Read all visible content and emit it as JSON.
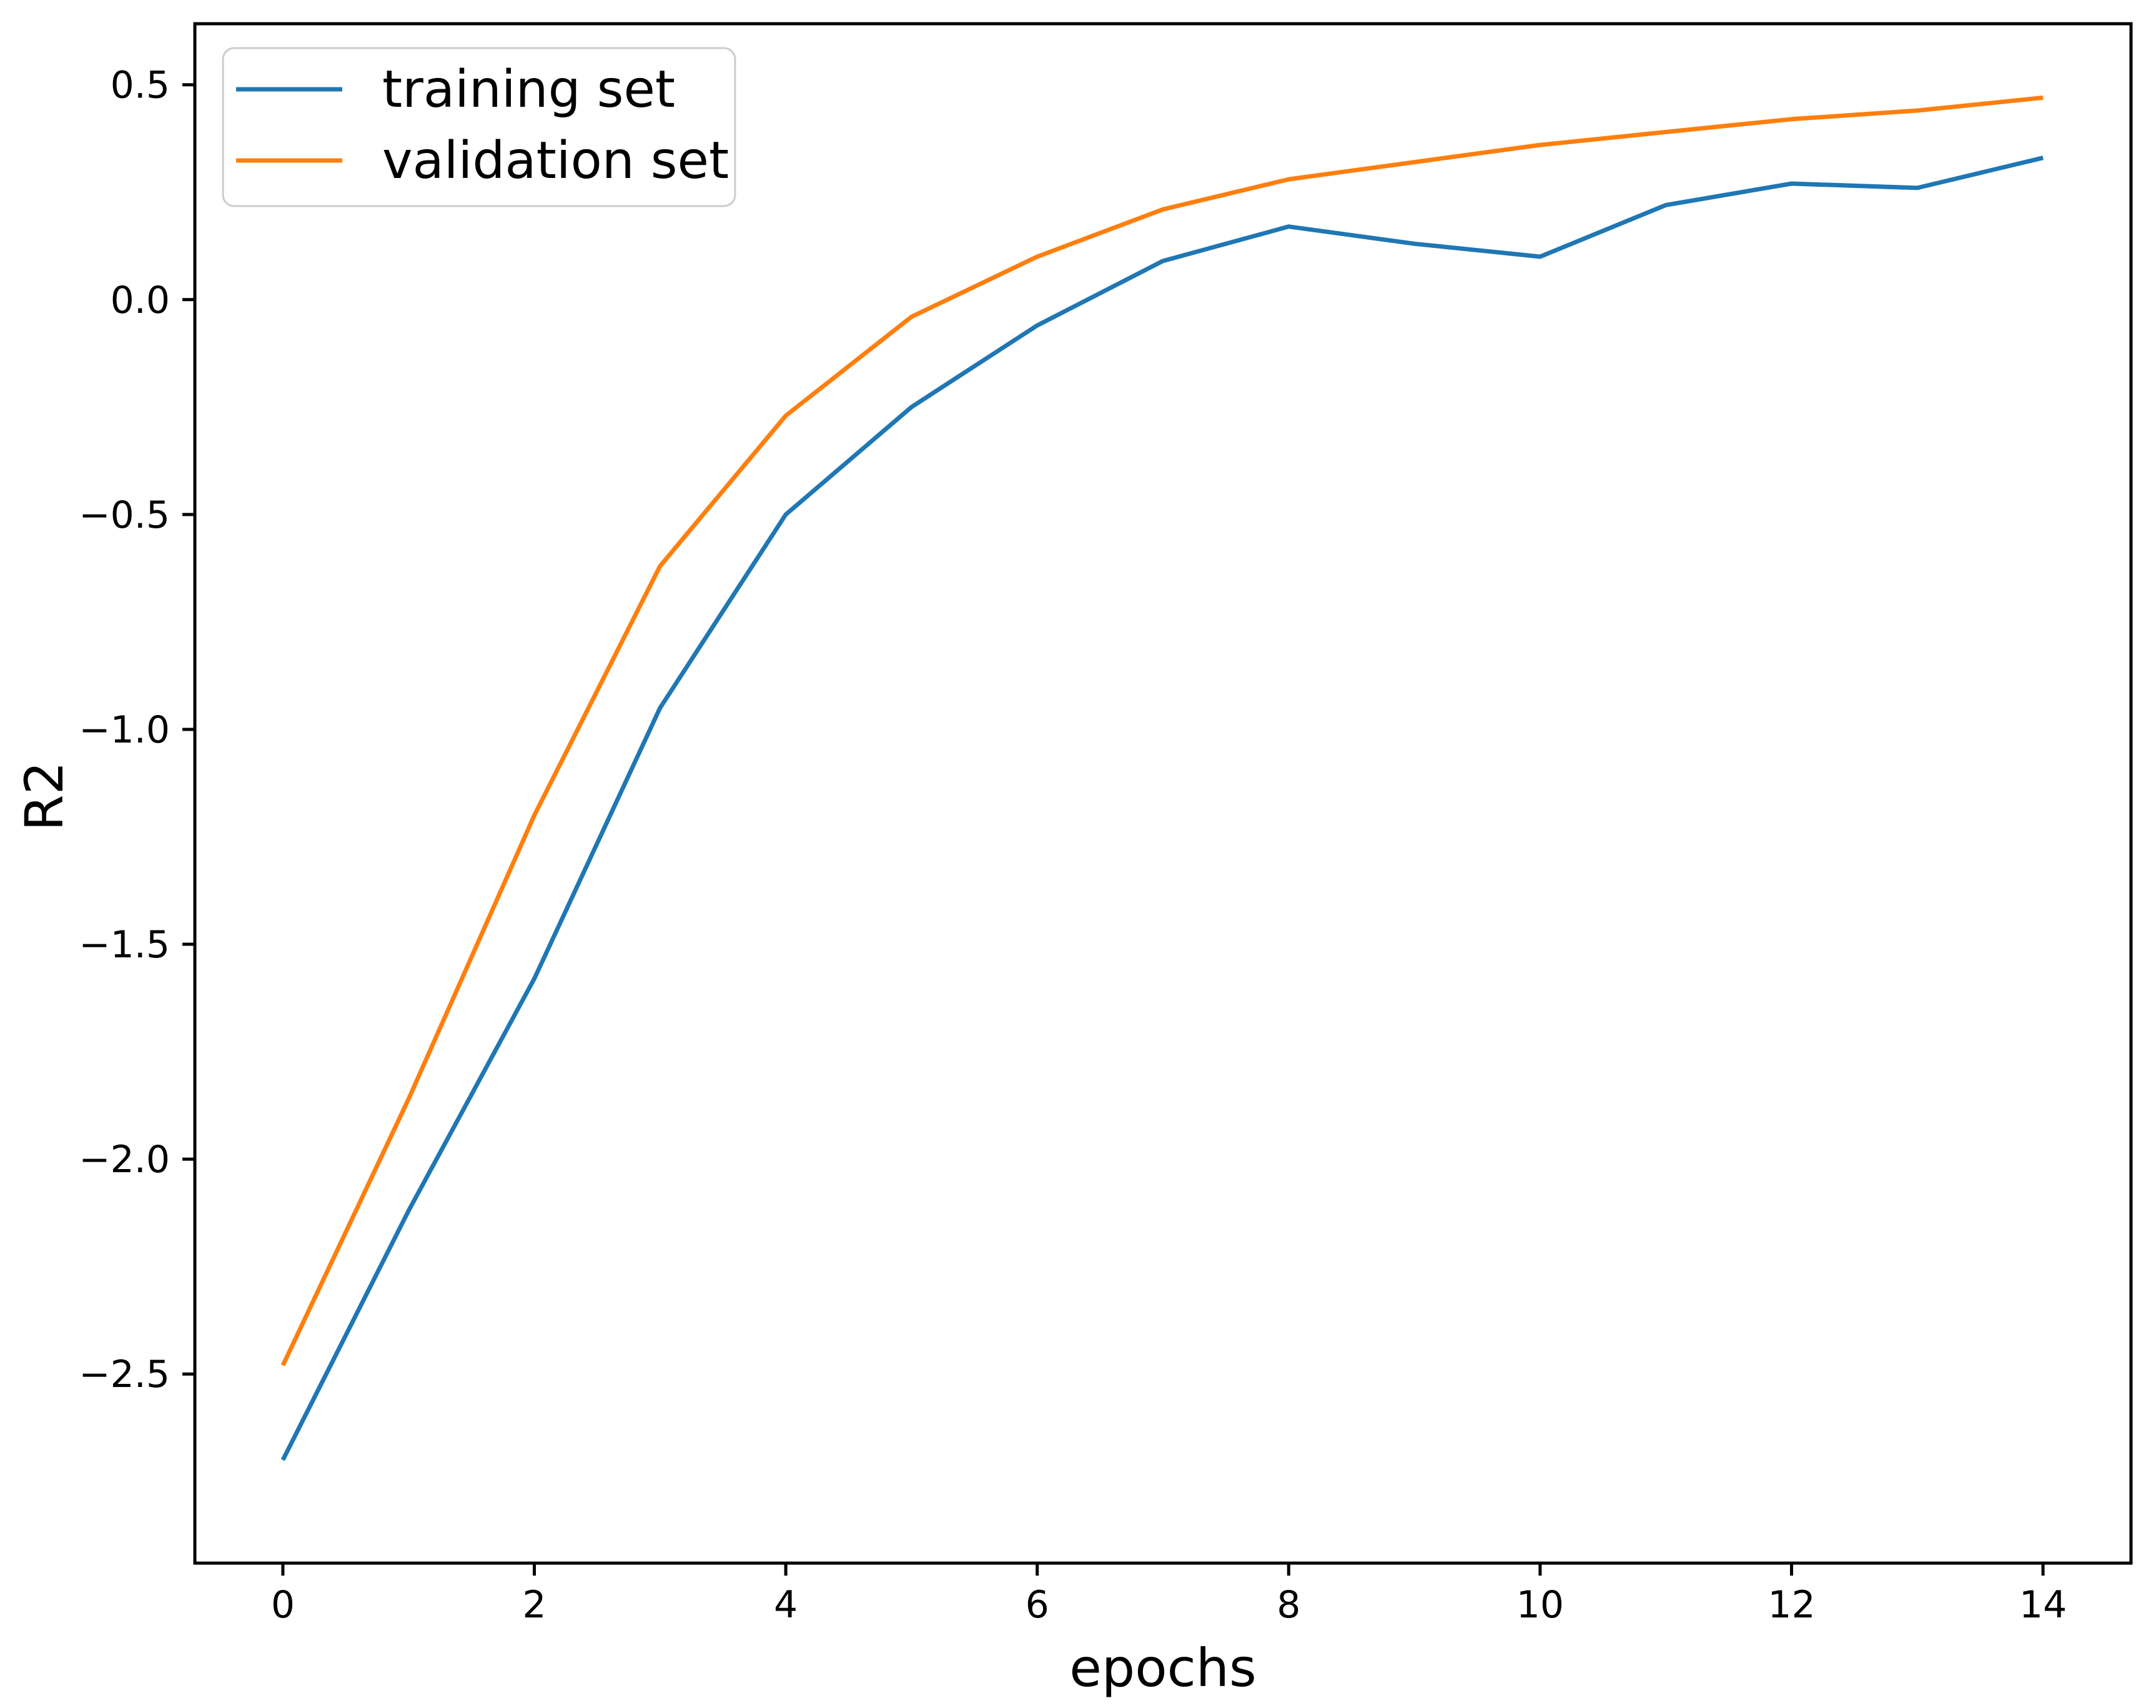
{
  "chart_data": {
    "type": "line",
    "title": "",
    "xlabel": "epochs",
    "ylabel": "R2",
    "x": [
      0,
      1,
      2,
      3,
      4,
      5,
      6,
      7,
      8,
      9,
      10,
      11,
      12,
      13,
      14
    ],
    "series": [
      {
        "name": "training set",
        "color": "#1f77b4",
        "values": [
          -2.7,
          -2.12,
          -1.58,
          -0.95,
          -0.5,
          -0.25,
          -0.06,
          0.09,
          0.17,
          0.13,
          0.1,
          0.22,
          0.27,
          0.26,
          0.33
        ]
      },
      {
        "name": "validation set",
        "color": "#ff7f0e",
        "values": [
          -2.48,
          -1.86,
          -1.2,
          -0.62,
          -0.27,
          -0.04,
          0.1,
          0.21,
          0.28,
          0.32,
          0.36,
          0.39,
          0.42,
          0.44,
          0.47
        ]
      }
    ],
    "xlim": [
      -0.7,
      14.7
    ],
    "ylim": [
      -2.94,
      0.642
    ],
    "xticks": [
      0,
      2,
      4,
      6,
      8,
      10,
      12,
      14
    ],
    "xtick_labels": [
      "0",
      "2",
      "4",
      "6",
      "8",
      "10",
      "12",
      "14"
    ],
    "yticks": [
      0.5,
      0.0,
      -0.5,
      -1.0,
      -1.5,
      -2.0,
      -2.5
    ],
    "ytick_labels": [
      "0.5",
      "0.0",
      "−0.5",
      "−1.0",
      "−1.5",
      "−2.0",
      "−2.5"
    ],
    "grid": false,
    "legend_position": "upper left",
    "background": "#ffffff",
    "text_color": "#000000"
  }
}
